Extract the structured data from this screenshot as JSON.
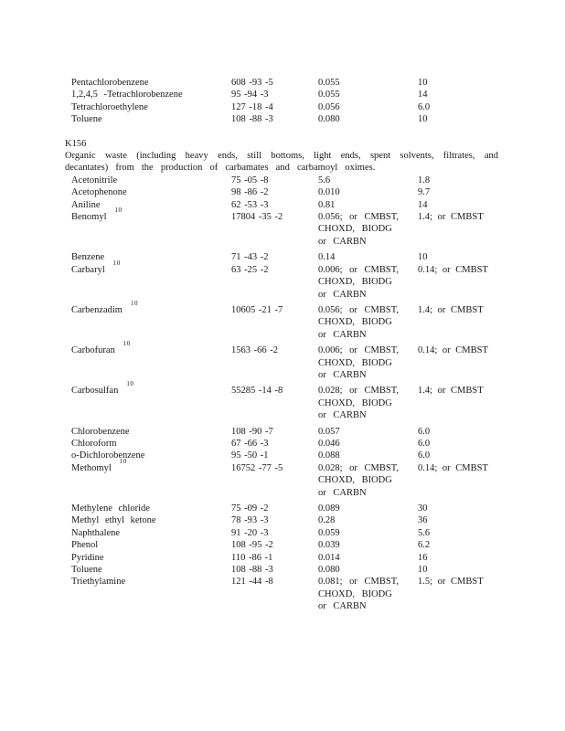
{
  "document": {
    "pre_section_rows": [
      {
        "name": "Pentachlorobenzene",
        "cas": "608 -93 -5",
        "col3": [
          "0.055"
        ],
        "col4": [
          "10"
        ]
      },
      {
        "name": "1,2,4,5 -Tetrachlorobenzene",
        "cas": "95 -94 -3",
        "col3": [
          "0.055"
        ],
        "col4": [
          "14"
        ]
      },
      {
        "name": "Tetrachloroethylene",
        "cas": "127 -18 -4",
        "col3": [
          "0.056"
        ],
        "col4": [
          "6.0"
        ]
      },
      {
        "name": "Toluene",
        "cas": "108 -88 -3",
        "col3": [
          "0.080"
        ],
        "col4": [
          "10"
        ]
      }
    ],
    "waste_code": {
      "code": "K156",
      "description_line1": "Organic waste (including heavy ends, still bottoms, light ends, spent solvents, filtrates, and",
      "description_line2": "decantates) from the production of carbamates and carbamoyl oximes."
    },
    "rows": [
      {
        "name": "Acetonitrile",
        "cas": "75 -05 -8",
        "col3": [
          "5.6"
        ],
        "col4": [
          "1.8"
        ]
      },
      {
        "name": "Acetophenone",
        "cas": "98 -86 -2",
        "col3": [
          "0.010"
        ],
        "col4": [
          "9.7"
        ]
      },
      {
        "name": "Aniline",
        "cas": "62 -53 -3",
        "col3": [
          "0.81"
        ],
        "col4": [
          "14"
        ]
      },
      {
        "name": "Benomyl",
        "footnote": "10",
        "cas": "17804 -35 -2",
        "col3": [
          "0.056; or CMBST,",
          "CHOXD, BIODG",
          "or CARBN"
        ],
        "col4": [
          "1.4; or CMBST"
        ],
        "gap_after": true
      },
      {
        "name": "Benzene",
        "cas": "71 -43 -2",
        "col3": [
          "0.14"
        ],
        "col4": [
          "10"
        ]
      },
      {
        "name": "Carbaryl",
        "footnote": "10",
        "cas": "63 -25 -2",
        "col3": [
          "0.006; or CMBST,",
          "CHOXD, BIODG",
          "or CARBN"
        ],
        "col4": [
          "0.14; or CMBST"
        ],
        "gap_after": true
      },
      {
        "name": "Carbenzadim",
        "footnote": "10",
        "cas": "10605 -21 -7",
        "col3": [
          "0.056; or CMBST,",
          "CHOXD, BIODG",
          "or CARBN"
        ],
        "col4": [
          "1.4; or CMBST"
        ],
        "gap_after": true
      },
      {
        "name": "Carbofuran",
        "footnote": "10",
        "cas": "1563 -66 -2",
        "col3": [
          "0.006; or CMBST,",
          "CHOXD, BIODG",
          "or CARBN"
        ],
        "col4": [
          "0.14; or CMBST"
        ],
        "gap_after": true
      },
      {
        "name": "Carbosulfan",
        "footnote": "10",
        "cas": "55285 -14 -8",
        "col3": [
          "0.028; or CMBST,",
          "CHOXD, BIODG",
          "or CARBN"
        ],
        "col4": [
          "1.4; or CMBST"
        ],
        "gap_after": true
      },
      {
        "name": "Chlorobenzene",
        "cas": "108 -90 -7",
        "col3": [
          "0.057"
        ],
        "col4": [
          "6.0"
        ]
      },
      {
        "name": "Chloroform",
        "cas": "67 -66 -3",
        "col3": [
          "0.046"
        ],
        "col4": [
          "6.0"
        ]
      },
      {
        "name": "o-Dichlorobenzene",
        "cas": "95 -50 -1",
        "col3": [
          "0.088"
        ],
        "col4": [
          "6.0"
        ]
      },
      {
        "name": "Methomyl",
        "footnote": "10",
        "cas": "16752 -77 -5",
        "col3": [
          "0.028; or CMBST,",
          "CHOXD, BIODG",
          "or CARBN"
        ],
        "col4": [
          "0.14; or CMBST"
        ],
        "gap_after": true
      },
      {
        "name": "Methylene chloride",
        "cas": "75 -09 -2",
        "col3": [
          "0.089"
        ],
        "col4": [
          "30"
        ]
      },
      {
        "name": "Methyl ethyl ketone",
        "cas": "78 -93 -3",
        "col3": [
          "0.28"
        ],
        "col4": [
          "36"
        ]
      },
      {
        "name": "Naphthalene",
        "cas": "91 -20 -3",
        "col3": [
          "0.059"
        ],
        "col4": [
          "5.6"
        ]
      },
      {
        "name": "Phenol",
        "cas": "108 -95 -2",
        "col3": [
          "0.039"
        ],
        "col4": [
          "6.2"
        ]
      },
      {
        "name": "Pyridine",
        "cas": "110 -86 -1",
        "col3": [
          "0.014"
        ],
        "col4": [
          "16"
        ]
      },
      {
        "name": "Toluene",
        "cas": "108 -88 -3",
        "col3": [
          "0.080"
        ],
        "col4": [
          "10"
        ]
      },
      {
        "name": "Triethylamine",
        "cas": "121 -44 -8",
        "col3": [
          "0.081; or CMBST,",
          "CHOXD, BIODG",
          "or CARBN"
        ],
        "col4": [
          "1.5; or CMBST"
        ]
      }
    ]
  }
}
